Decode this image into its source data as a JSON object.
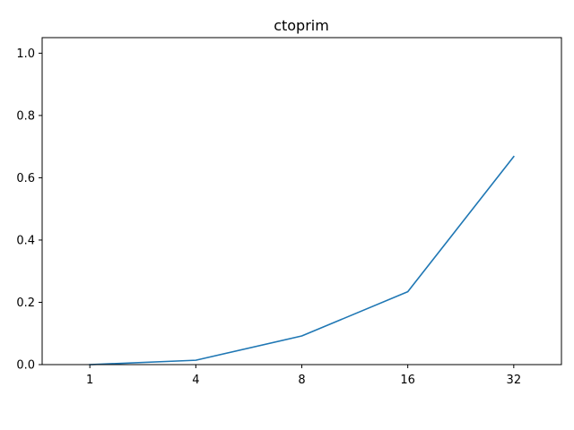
{
  "chart_data": {
    "type": "line",
    "title": "ctoprim",
    "xlabel": "",
    "ylabel": "",
    "categories": [
      "1",
      "4",
      "8",
      "16",
      "32"
    ],
    "series": [
      {
        "values": [
          0.0,
          0.014,
          0.092,
          0.234,
          0.668
        ],
        "color": "#1f77b4"
      }
    ],
    "ylim": [
      0,
      1.05
    ],
    "yticks": [
      0.0,
      0.2,
      0.4,
      0.6,
      0.8,
      1.0
    ],
    "ytick_labels": [
      "0.0",
      "0.2",
      "0.4",
      "0.6",
      "0.8",
      "1.0"
    ],
    "grid": false,
    "legend": "none"
  }
}
